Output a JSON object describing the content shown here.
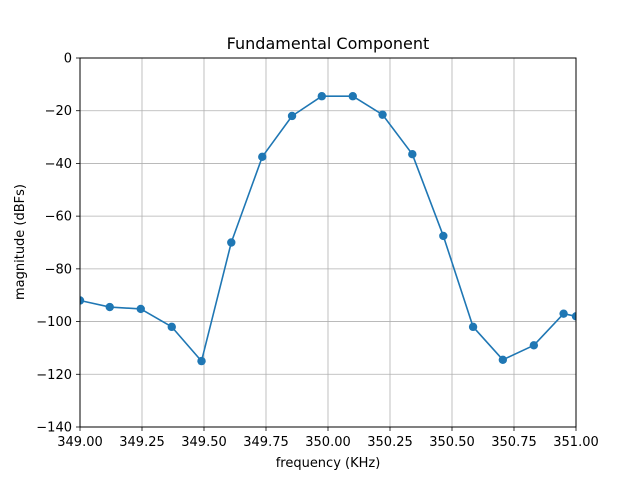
{
  "chart_data": {
    "type": "line",
    "title": "Fundamental Component",
    "xlabel": "frequency (KHz)",
    "ylabel": "magnitude (dBFs)",
    "xlim": [
      349.0,
      351.0
    ],
    "ylim": [
      -140,
      0
    ],
    "grid": true,
    "xticks": [
      349.0,
      349.25,
      349.5,
      349.75,
      350.0,
      350.25,
      350.5,
      350.75,
      351.0
    ],
    "xtick_labels": [
      "349.00",
      "349.25",
      "349.50",
      "349.75",
      "350.00",
      "350.25",
      "350.50",
      "350.75",
      "351.00"
    ],
    "yticks": [
      0,
      -20,
      -40,
      -60,
      -80,
      -100,
      -120,
      -140
    ],
    "ytick_labels": [
      "0",
      "−20",
      "−40",
      "−60",
      "−80",
      "−100",
      "−120",
      "−140"
    ],
    "series": [
      {
        "color": "#1f77b4",
        "marker": "circle",
        "x": [
          349.0,
          349.12,
          349.245,
          349.37,
          349.49,
          349.61,
          349.735,
          349.855,
          349.975,
          350.1,
          350.22,
          350.34,
          350.465,
          350.585,
          350.705,
          350.83,
          350.95,
          351.0
        ],
        "y": [
          -92,
          -94.5,
          -95.2,
          -102,
          -115,
          -70,
          -37.5,
          -22,
          -14.5,
          -14.5,
          -21.5,
          -36.5,
          -67.5,
          -102,
          -114.5,
          -109,
          -97,
          -98
        ]
      }
    ]
  }
}
